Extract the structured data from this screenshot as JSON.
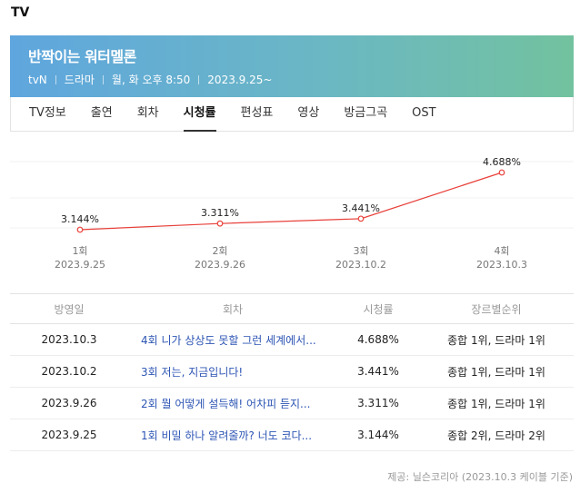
{
  "section_title": "TV",
  "show": {
    "title": "반짝이는 워터멜론",
    "channel": "tvN",
    "genre": "드라마",
    "schedule": "월, 화 오후 8:50",
    "start_date": "2023.9.25~"
  },
  "tabs": [
    {
      "label": "TV정보",
      "active": false
    },
    {
      "label": "출연",
      "active": false
    },
    {
      "label": "회차",
      "active": false
    },
    {
      "label": "시청률",
      "active": true
    },
    {
      "label": "편성표",
      "active": false
    },
    {
      "label": "영상",
      "active": false
    },
    {
      "label": "방금그곡",
      "active": false
    },
    {
      "label": "OST",
      "active": false
    }
  ],
  "chart_data": {
    "type": "line",
    "x": [
      "1회",
      "2회",
      "3회",
      "4회"
    ],
    "dates": [
      "2023.9.25",
      "2023.9.26",
      "2023.10.2",
      "2023.10.3"
    ],
    "values": [
      3.144,
      3.311,
      3.441,
      4.688
    ],
    "value_labels": [
      "3.144%",
      "3.311%",
      "3.441%",
      "4.688%"
    ],
    "line_color": "#e8403a",
    "grid": true
  },
  "table": {
    "headers": [
      "방영일",
      "회차",
      "시청률",
      "장르별순위"
    ],
    "rows": [
      {
        "date": "2023.10.3",
        "episode": "4회 니가 상상도 못할 그런 세계에서...",
        "rating": "4.688%",
        "rank": "종합 1위, 드라마 1위"
      },
      {
        "date": "2023.10.2",
        "episode": "3회 저는, 지금입니다!",
        "rating": "3.441%",
        "rank": "종합 1위, 드라마 1위"
      },
      {
        "date": "2023.9.26",
        "episode": "2회 뭘 어떻게 설득해! 어차피 듣지...",
        "rating": "3.311%",
        "rank": "종합 1위, 드라마 1위"
      },
      {
        "date": "2023.9.25",
        "episode": "1회 비밀 하나 알려줄까? 너도 코다...",
        "rating": "3.144%",
        "rank": "종합 2위, 드라마 2위"
      }
    ]
  },
  "source": "제공: 닐슨코리아 (2023.10.3 케이블 기준)"
}
